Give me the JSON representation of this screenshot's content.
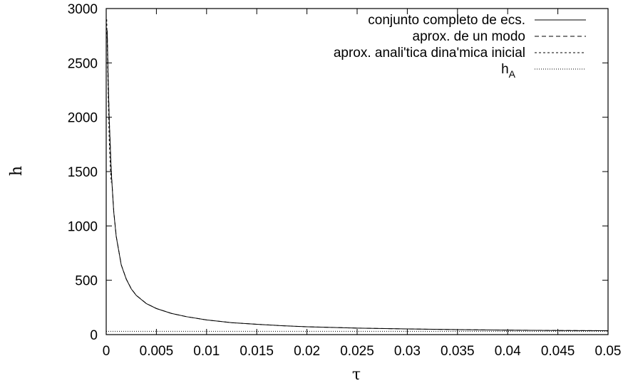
{
  "chart_data": {
    "type": "line",
    "title": "",
    "xlabel": "τ",
    "ylabel": "h",
    "xlim": [
      0,
      0.05
    ],
    "ylim": [
      0,
      3000
    ],
    "xticks": [
      "0",
      "0.005",
      "0.01",
      "0.015",
      "0.02",
      "0.025",
      "0.03",
      "0.035",
      "0.04",
      "0.045",
      "0.05"
    ],
    "yticks": [
      "0",
      "500",
      "1000",
      "1500",
      "2000",
      "2500",
      "3000"
    ],
    "grid": false,
    "legend_position": "top-right",
    "series": [
      {
        "name": "conjunto completo de ecs.",
        "style": "solid",
        "x": [
          0.0001,
          0.0002,
          0.0003,
          0.0005,
          0.00075,
          0.001,
          0.0015,
          0.002,
          0.0025,
          0.003,
          0.004,
          0.005,
          0.0065,
          0.008,
          0.01,
          0.0125,
          0.015,
          0.0175,
          0.02,
          0.025,
          0.03,
          0.035,
          0.04,
          0.045,
          0.05
        ],
        "y": [
          2780,
          2330,
          1980,
          1500,
          1130,
          900,
          640,
          510,
          420,
          360,
          285,
          240,
          195,
          165,
          135,
          110,
          95,
          82,
          72,
          60,
          52,
          46,
          41,
          38,
          36
        ]
      },
      {
        "name": "aprox. de un modo",
        "style": "dashed",
        "x": [
          0.0001,
          0.0002,
          0.0003,
          0.0005,
          0.00075,
          0.001,
          0.0015,
          0.002,
          0.0025,
          0.003,
          0.004,
          0.005,
          0.0065,
          0.008,
          0.01,
          0.0125,
          0.015,
          0.0175,
          0.02,
          0.025,
          0.03,
          0.035,
          0.04,
          0.045,
          0.05
        ],
        "y": [
          2800,
          2350,
          1990,
          1510,
          1135,
          905,
          642,
          511,
          421,
          361,
          286,
          240,
          195,
          165,
          135,
          110,
          95,
          82,
          72,
          60,
          52,
          46,
          41,
          38,
          36
        ]
      },
      {
        "name": "aprox. anali'tica dina'mica inicial",
        "style": "short-dashed",
        "x": [
          5e-05,
          0.0001,
          0.00015,
          0.0002,
          0.0003,
          0.0004,
          0.0005
        ],
        "y": [
          2900,
          2700,
          2450,
          2200,
          1800,
          1560,
          1400
        ]
      },
      {
        "name": "h_A",
        "style": "dotted",
        "x": [
          0,
          0.05
        ],
        "y": [
          30,
          30
        ]
      }
    ],
    "legend_labels": {
      "s0": "conjunto completo de ecs.",
      "s1": "aprox. de un modo",
      "s2": "aprox. anali'tica dina'mica inicial",
      "s3_main": "h",
      "s3_sub": "A"
    }
  }
}
